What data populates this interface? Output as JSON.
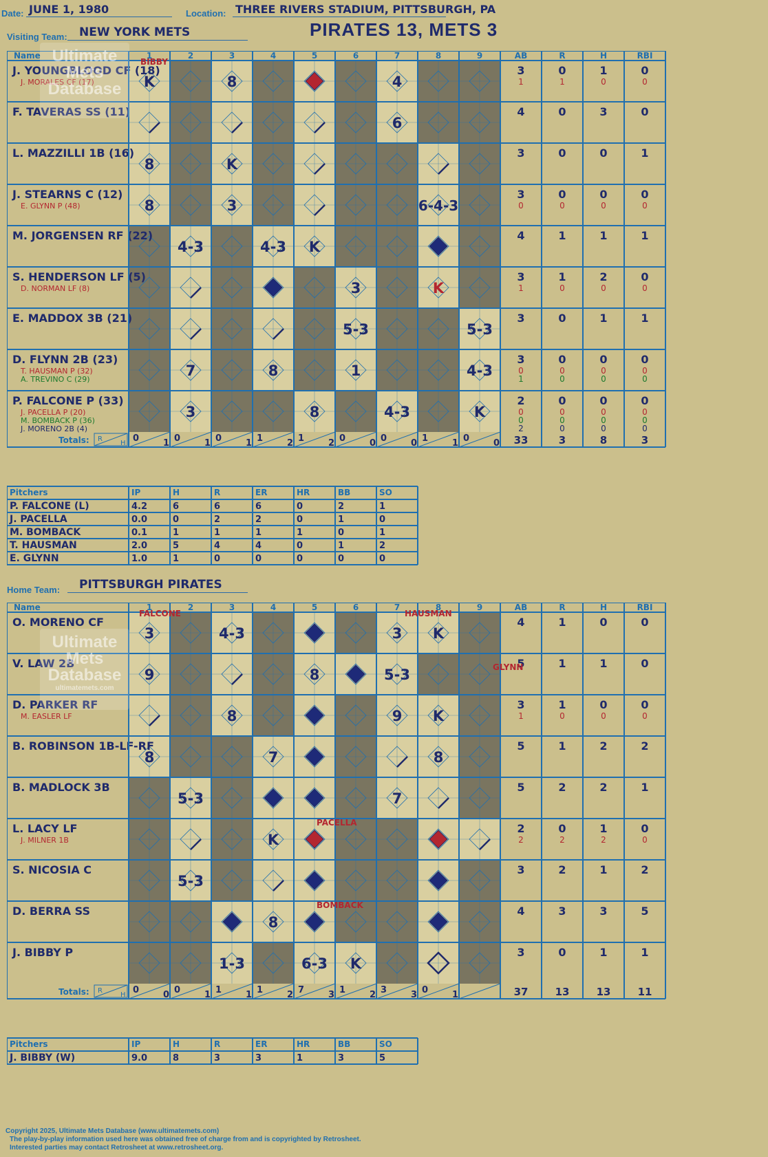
{
  "header": {
    "date_label": "Date:",
    "date": "JUNE 1, 1980",
    "location_label": "Location:",
    "location": "THREE RIVERS STADIUM, PITTSBURGH, PA",
    "title": "PIRATES 13, METS 3"
  },
  "visiting": {
    "team_label": "Visiting Team:",
    "team": "NEW YORK METS",
    "headers": [
      "Name",
      "1",
      "2",
      "3",
      "4",
      "5",
      "6",
      "7",
      "8",
      "9",
      "AB",
      "R",
      "H",
      "RBI"
    ],
    "rows": [
      {
        "name": "J. YOUNGBLOOD CF (18)",
        "sub": "J. MORALES CF (17)",
        "stats": [
          "3",
          "0",
          "1",
          "0"
        ],
        "sub_stats": [
          "1",
          "1",
          "0",
          "0"
        ]
      },
      {
        "name": "F. TAVERAS SS (11)",
        "stats": [
          "4",
          "0",
          "3",
          "0"
        ]
      },
      {
        "name": "L. MAZZILLI 1B (16)",
        "stats": [
          "3",
          "0",
          "0",
          "1"
        ]
      },
      {
        "name": "J. STEARNS C (12)",
        "sub": "E. GLYNN P (48)",
        "stats": [
          "3",
          "0",
          "0",
          "0"
        ],
        "sub_stats": [
          "0",
          "0",
          "0",
          "0"
        ]
      },
      {
        "name": "M. JORGENSEN RF (22)",
        "stats": [
          "4",
          "1",
          "1",
          "1"
        ]
      },
      {
        "name": "S. HENDERSON LF (5)",
        "sub": "D. NORMAN LF (8)",
        "stats": [
          "3",
          "1",
          "2",
          "0"
        ],
        "sub_stats": [
          "1",
          "0",
          "0",
          "0"
        ]
      },
      {
        "name": "E. MADDOX 3B (21)",
        "stats": [
          "3",
          "0",
          "1",
          "1"
        ]
      },
      {
        "name": "D. FLYNN 2B (23)",
        "sub": "T. HAUSMAN P (32)",
        "sub2": "A. TREVINO C (29)",
        "stats": [
          "3",
          "0",
          "0",
          "0"
        ],
        "sub_stats": [
          "0",
          "0",
          "0",
          "0"
        ],
        "sub2_stats": [
          "1",
          "0",
          "0",
          "0"
        ]
      },
      {
        "name": "P. FALCONE P (33)",
        "sub": "J. PACELLA P (20)",
        "sub2": "M. BOMBACK P (36)",
        "sub3": "J. MORENO 2B (4)",
        "stats": [
          "2",
          "0",
          "0",
          "0"
        ],
        "sub_stats": [
          "0",
          "0",
          "0",
          "0"
        ],
        "sub2_stats": [
          "0",
          "0",
          "0",
          "0"
        ],
        "sub3_stats": [
          "2",
          "0",
          "0",
          "0"
        ]
      }
    ],
    "marks": [
      [
        [
          "K",
          ""
        ],
        [
          "",
          ""
        ],
        [
          "8",
          ""
        ],
        [
          "",
          ""
        ],
        [
          "",
          "R"
        ],
        [
          "",
          ""
        ],
        [
          "4",
          ""
        ],
        [
          "",
          ""
        ],
        [
          "",
          ""
        ]
      ],
      [
        [
          "",
          "L"
        ],
        [
          "",
          ""
        ],
        [
          "",
          "L"
        ],
        [
          "",
          ""
        ],
        [
          "",
          "L"
        ],
        [
          "",
          ""
        ],
        [
          "6",
          ""
        ],
        [
          "",
          ""
        ],
        [
          "",
          ""
        ]
      ],
      [
        [
          "8",
          ""
        ],
        [
          "",
          ""
        ],
        [
          "K",
          ""
        ],
        [
          "",
          ""
        ],
        [
          "",
          "L"
        ],
        [
          "",
          ""
        ],
        [
          "",
          ""
        ],
        [
          "",
          "L"
        ],
        [
          "",
          ""
        ]
      ],
      [
        [
          "8",
          ""
        ],
        [
          "",
          ""
        ],
        [
          "3",
          ""
        ],
        [
          "",
          ""
        ],
        [
          "",
          "L"
        ],
        [
          "",
          ""
        ],
        [
          "",
          ""
        ],
        [
          "6-4-3",
          ""
        ],
        [
          "",
          ""
        ]
      ],
      [
        [
          "",
          ""
        ],
        [
          "4-3",
          ""
        ],
        [
          "",
          ""
        ],
        [
          "4-3",
          ""
        ],
        [
          "K",
          ""
        ],
        [
          "",
          ""
        ],
        [
          "",
          ""
        ],
        [
          "",
          "D"
        ],
        [
          "",
          ""
        ]
      ],
      [
        [
          "",
          ""
        ],
        [
          "",
          "L"
        ],
        [
          "",
          ""
        ],
        [
          "",
          "D"
        ],
        [
          "",
          ""
        ],
        [
          "3",
          ""
        ],
        [
          "",
          ""
        ],
        [
          "K",
          ""
        ],
        [
          "",
          ""
        ]
      ],
      [
        [
          "",
          ""
        ],
        [
          "",
          "L"
        ],
        [
          "",
          ""
        ],
        [
          "",
          "L"
        ],
        [
          "",
          ""
        ],
        [
          "5-3",
          ""
        ],
        [
          "",
          ""
        ],
        [
          "",
          ""
        ],
        [
          "5-3",
          ""
        ]
      ],
      [
        [
          "",
          ""
        ],
        [
          "7",
          ""
        ],
        [
          "",
          ""
        ],
        [
          "8",
          ""
        ],
        [
          "",
          ""
        ],
        [
          "1",
          ""
        ],
        [
          "",
          ""
        ],
        [
          "",
          ""
        ],
        [
          "4-3",
          ""
        ]
      ],
      [
        [
          "",
          ""
        ],
        [
          "3",
          ""
        ],
        [
          "",
          ""
        ],
        [
          "",
          ""
        ],
        [
          "8",
          ""
        ],
        [
          "",
          ""
        ],
        [
          "4-3",
          ""
        ],
        [
          "",
          ""
        ],
        [
          "K",
          ""
        ]
      ]
    ],
    "pitcher_note": "BIBBY",
    "totals_label": "Totals:",
    "totals": [
      [
        "0",
        "1"
      ],
      [
        "0",
        "1"
      ],
      [
        "0",
        "1"
      ],
      [
        "1",
        "2"
      ],
      [
        "1",
        "2"
      ],
      [
        "0",
        "0"
      ],
      [
        "0",
        "0"
      ],
      [
        "1",
        "1"
      ],
      [
        "0",
        "0"
      ]
    ],
    "totals_stats": [
      "33",
      "3",
      "8",
      "3"
    ],
    "pitchers_headers": [
      "Pitchers",
      "IP",
      "H",
      "R",
      "ER",
      "HR",
      "BB",
      "SO"
    ],
    "pitchers": [
      [
        "P. FALCONE (L)",
        "4.2",
        "6",
        "6",
        "6",
        "0",
        "2",
        "1"
      ],
      [
        "J. PACELLA",
        "0.0",
        "0",
        "2",
        "2",
        "0",
        "1",
        "0"
      ],
      [
        "M. BOMBACK",
        "0.1",
        "1",
        "1",
        "1",
        "1",
        "0",
        "1"
      ],
      [
        "T. HAUSMAN",
        "2.0",
        "5",
        "4",
        "4",
        "0",
        "1",
        "2"
      ],
      [
        "E. GLYNN",
        "1.0",
        "1",
        "0",
        "0",
        "0",
        "0",
        "0"
      ]
    ]
  },
  "home": {
    "team_label": "Home Team:",
    "team": "PITTSBURGH PIRATES",
    "headers": [
      "Name",
      "1",
      "2",
      "3",
      "4",
      "5",
      "6",
      "7",
      "8",
      "9",
      "AB",
      "R",
      "H",
      "RBI"
    ],
    "rows": [
      {
        "name": "O. MORENO CF",
        "stats": [
          "4",
          "1",
          "0",
          "0"
        ]
      },
      {
        "name": "V. LAW 2B",
        "stats": [
          "5",
          "1",
          "1",
          "0"
        ]
      },
      {
        "name": "D. PARKER RF",
        "sub": "M. EASLER LF",
        "stats": [
          "3",
          "1",
          "0",
          "0"
        ],
        "sub_stats": [
          "1",
          "0",
          "0",
          "0"
        ]
      },
      {
        "name": "B. ROBINSON 1B-LF-RF",
        "stats": [
          "5",
          "1",
          "2",
          "2"
        ]
      },
      {
        "name": "B. MADLOCK 3B",
        "stats": [
          "5",
          "2",
          "2",
          "1"
        ]
      },
      {
        "name": "L. LACY LF",
        "sub": "J. MILNER 1B",
        "stats": [
          "2",
          "0",
          "1",
          "0"
        ],
        "sub_stats": [
          "2",
          "2",
          "2",
          "0"
        ]
      },
      {
        "name": "S. NICOSIA C",
        "stats": [
          "3",
          "2",
          "1",
          "2"
        ]
      },
      {
        "name": "D. BERRA SS",
        "stats": [
          "4",
          "3",
          "3",
          "5"
        ]
      },
      {
        "name": "J. BIBBY P",
        "stats": [
          "3",
          "0",
          "1",
          "1"
        ]
      }
    ],
    "marks": [
      [
        [
          "3",
          ""
        ],
        [
          "",
          ""
        ],
        [
          "4-3",
          ""
        ],
        [
          "",
          ""
        ],
        [
          "",
          "D"
        ],
        [
          "",
          ""
        ],
        [
          "3",
          ""
        ],
        [
          "K",
          ""
        ],
        [
          "",
          ""
        ]
      ],
      [
        [
          "9",
          ""
        ],
        [
          "",
          ""
        ],
        [
          "",
          "L"
        ],
        [
          "",
          ""
        ],
        [
          "8",
          ""
        ],
        [
          "",
          "D"
        ],
        [
          "5-3",
          ""
        ],
        [
          "",
          ""
        ],
        [
          "",
          ""
        ]
      ],
      [
        [
          "",
          "L"
        ],
        [
          "",
          ""
        ],
        [
          "8",
          ""
        ],
        [
          "",
          ""
        ],
        [
          "",
          "D"
        ],
        [
          "",
          ""
        ],
        [
          "9",
          ""
        ],
        [
          "K",
          ""
        ],
        [
          "",
          ""
        ]
      ],
      [
        [
          "8",
          ""
        ],
        [
          "",
          ""
        ],
        [
          "",
          ""
        ],
        [
          "7",
          ""
        ],
        [
          "",
          "D"
        ],
        [
          "",
          ""
        ],
        [
          "",
          "L"
        ],
        [
          "8",
          ""
        ],
        [
          "",
          ""
        ]
      ],
      [
        [
          "",
          ""
        ],
        [
          "5-3",
          ""
        ],
        [
          "",
          ""
        ],
        [
          "",
          "D"
        ],
        [
          "",
          "D"
        ],
        [
          "",
          ""
        ],
        [
          "7",
          ""
        ],
        [
          "",
          "L"
        ],
        [
          "",
          ""
        ]
      ],
      [
        [
          "",
          ""
        ],
        [
          "",
          "L"
        ],
        [
          "",
          ""
        ],
        [
          "K",
          ""
        ],
        [
          "",
          "R"
        ],
        [
          "",
          ""
        ],
        [
          "",
          ""
        ],
        [
          "",
          "R"
        ],
        [
          "",
          "L"
        ]
      ],
      [
        [
          "",
          ""
        ],
        [
          "5-3",
          ""
        ],
        [
          "",
          ""
        ],
        [
          "",
          "L"
        ],
        [
          "",
          "D"
        ],
        [
          "",
          ""
        ],
        [
          "",
          ""
        ],
        [
          "",
          "D"
        ],
        [
          "",
          ""
        ]
      ],
      [
        [
          "",
          ""
        ],
        [
          "",
          ""
        ],
        [
          "",
          "D"
        ],
        [
          "8",
          ""
        ],
        [
          "",
          "D"
        ],
        [
          "",
          ""
        ],
        [
          "",
          ""
        ],
        [
          "",
          "D"
        ],
        [
          "",
          ""
        ]
      ],
      [
        [
          "",
          ""
        ],
        [
          "",
          ""
        ],
        [
          "1-3",
          ""
        ],
        [
          "",
          ""
        ],
        [
          "6-3",
          ""
        ],
        [
          "K",
          ""
        ],
        [
          "",
          ""
        ],
        [
          "",
          "O"
        ],
        [
          "",
          ""
        ]
      ]
    ],
    "notes": [
      "FALCONE",
      "HAUSMAN",
      "GLYNN",
      "PACELLA",
      "BOMBACK"
    ],
    "totals_label": "Totals:",
    "totals": [
      [
        "0",
        "0"
      ],
      [
        "0",
        "1"
      ],
      [
        "1",
        "1"
      ],
      [
        "1",
        "2"
      ],
      [
        "7",
        "3"
      ],
      [
        "1",
        "2"
      ],
      [
        "3",
        "3"
      ],
      [
        "0",
        "1"
      ],
      [
        "",
        ""
      ]
    ],
    "totals_stats": [
      "37",
      "13",
      "13",
      "11"
    ],
    "pitchers_headers": [
      "Pitchers",
      "IP",
      "H",
      "R",
      "ER",
      "HR",
      "BB",
      "SO"
    ],
    "pitchers": [
      [
        "J. BIBBY (W)",
        "9.0",
        "8",
        "3",
        "3",
        "1",
        "3",
        "5"
      ]
    ]
  },
  "watermark": {
    "line1": "Ultimate",
    "line2": "Mets",
    "line3": "Database",
    "url": "ultimatemets.com"
  },
  "footer": {
    "copyright": "Copyright 2025, Ultimate Mets Database (www.ultimatemets.com)",
    "line2": "The play-by-play information used here was obtained free of charge from and is copyrighted by Retrosheet.",
    "line3": "Interested parties may contact Retrosheet at www.retrosheet.org."
  },
  "colors": {
    "background": "#cbbf8c",
    "grid": "#1f6fb0",
    "ink": "#1f2a6b",
    "shade": "#7a7560",
    "cell": "#d9cfa0",
    "red": "#b32630",
    "run": "#1e2a78"
  }
}
